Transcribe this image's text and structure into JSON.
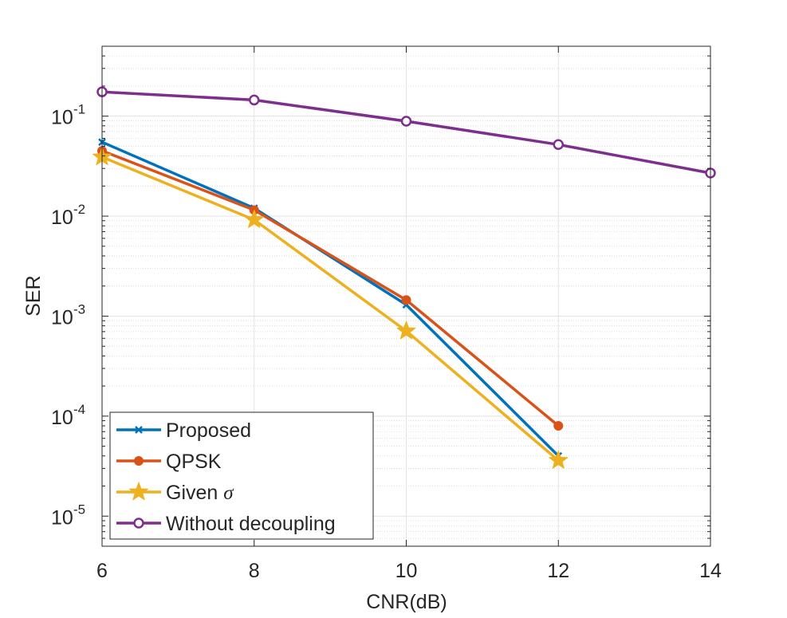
{
  "chart_data": {
    "type": "line",
    "title": "",
    "xlabel": "CNR(dB)",
    "ylabel": "SER",
    "xscale": "linear",
    "yscale": "log",
    "xlim": [
      6,
      14
    ],
    "ylim": [
      5e-06,
      0.5
    ],
    "xticks": [
      6,
      8,
      10,
      12,
      14
    ],
    "xtick_labels": [
      "6",
      "8",
      "10",
      "12",
      "14"
    ],
    "yticks": [
      {
        "value": 1e-05,
        "base": "10",
        "exp": "-5"
      },
      {
        "value": 0.0001,
        "base": "10",
        "exp": "-4"
      },
      {
        "value": 0.001,
        "base": "10",
        "exp": "-3"
      },
      {
        "value": 0.01,
        "base": "10",
        "exp": "-2"
      },
      {
        "value": 0.1,
        "base": "10",
        "exp": "-1"
      }
    ],
    "grid": true,
    "minor_grid": true,
    "legend_position": "bottom-left",
    "series": [
      {
        "name": "Proposed",
        "legend_text": "Proposed",
        "color": "#0072BD",
        "marker": "x",
        "x": [
          6,
          8,
          10,
          12
        ],
        "y": [
          0.055,
          0.012,
          0.0013,
          4e-05
        ]
      },
      {
        "name": "QPSK",
        "legend_text": "QPSK",
        "color": "#D95319",
        "marker": "dot",
        "x": [
          6,
          8,
          10,
          12
        ],
        "y": [
          0.045,
          0.0115,
          0.00145,
          8e-05
        ]
      },
      {
        "name": "Given σ",
        "legend_text": "Given ",
        "legend_symbol": "σ",
        "color": "#EDB120",
        "marker": "star",
        "x": [
          6,
          8,
          10,
          12
        ],
        "y": [
          0.039,
          0.0092,
          0.00071,
          3.6e-05
        ]
      },
      {
        "name": "Without decoupling",
        "legend_text": "Without decoupling",
        "color": "#7E2F8E",
        "marker": "circle",
        "x": [
          6,
          8,
          10,
          12,
          14
        ],
        "y": [
          0.175,
          0.145,
          0.089,
          0.052,
          0.027
        ]
      }
    ]
  }
}
